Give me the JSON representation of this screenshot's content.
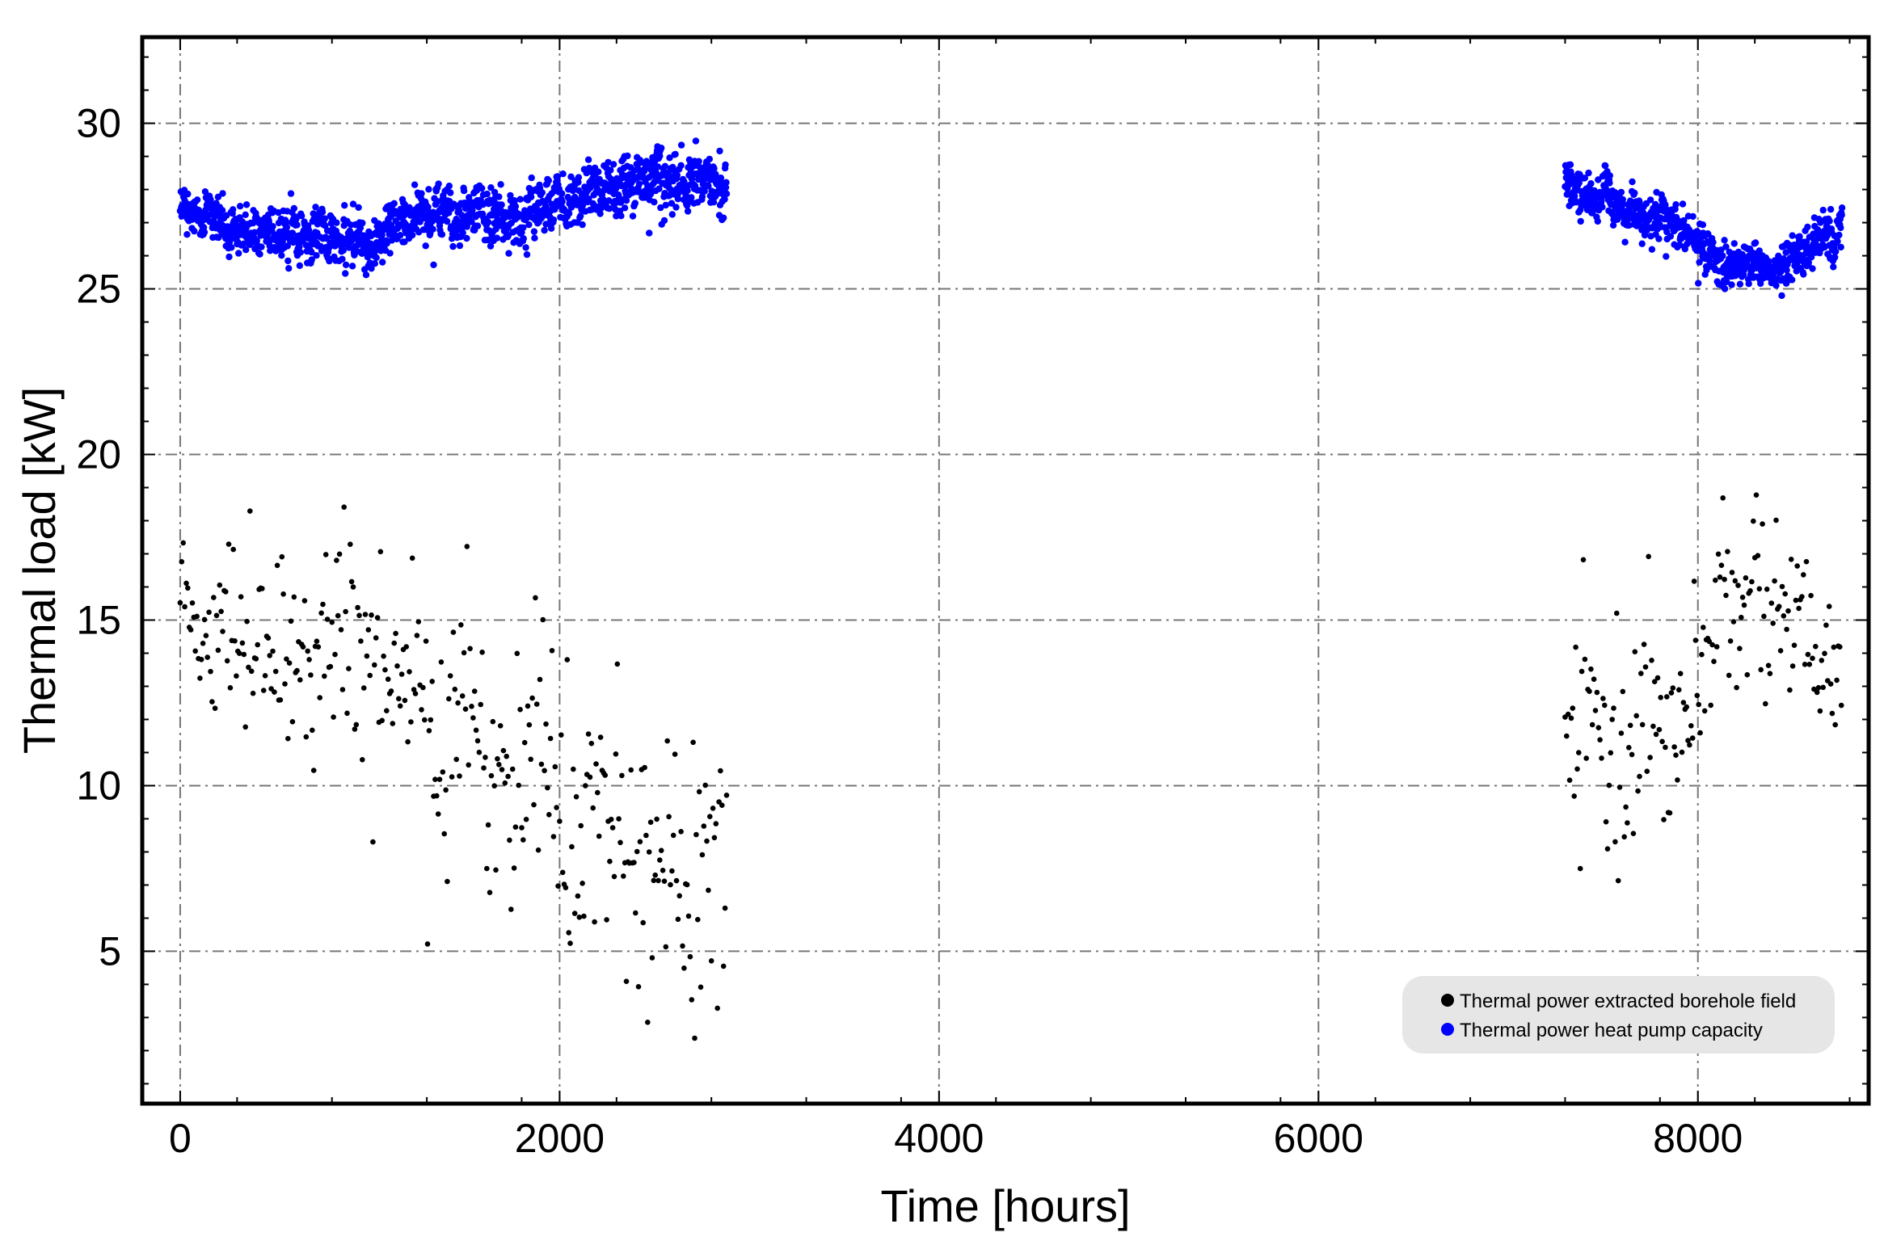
{
  "chart_data": {
    "type": "scatter",
    "title": "",
    "xlabel": "Time [hours]",
    "ylabel": "Thermal load [kW]",
    "xlim": [
      -200,
      8900
    ],
    "ylim": [
      0.4,
      32.6
    ],
    "x_ticks": [
      0,
      2000,
      4000,
      6000,
      8000
    ],
    "y_ticks": [
      5,
      10,
      15,
      20,
      25,
      30
    ],
    "x_tick_labels": [
      "0",
      "2000",
      "4000",
      "6000",
      "8000"
    ],
    "y_tick_labels": [
      "5",
      "10",
      "15",
      "20",
      "25",
      "30"
    ],
    "grid": true,
    "legend_position": "bottom-right",
    "series": [
      {
        "name": "Thermal power extracted borehole field",
        "color": "#000000",
        "segments": [
          {
            "x_start": 0,
            "x_end": 2880,
            "step": 8,
            "profile": [
              [
                0,
                15.5,
                2.3
              ],
              [
                300,
                15.0,
                2.6
              ],
              [
                600,
                14.5,
                3.0
              ],
              [
                900,
                14.5,
                3.0
              ],
              [
                1200,
                11.5,
                3.5
              ],
              [
                1500,
                11.0,
                3.8
              ],
              [
                1800,
                10.5,
                4.0
              ],
              [
                2100,
                9.5,
                4.2
              ],
              [
                2400,
                8.5,
                4.3
              ],
              [
                2700,
                7.5,
                4.5
              ],
              [
                2880,
                8.0,
                4.0
              ]
            ],
            "range": [
              0.6,
              19.8
            ]
          },
          {
            "x_start": 7300,
            "x_end": 8760,
            "step": 8,
            "profile": [
              [
                7300,
                11.0,
                2.8
              ],
              [
                7600,
                11.5,
                3.0
              ],
              [
                7900,
                12.5,
                2.5
              ],
              [
                8100,
                15.0,
                2.2
              ],
              [
                8400,
                15.5,
                2.5
              ],
              [
                8600,
                13.5,
                2.3
              ],
              [
                8760,
                12.5,
                2.0
              ]
            ],
            "range": [
              4.5,
              20.8
            ]
          }
        ]
      },
      {
        "name": "Thermal power heat pump capacity",
        "color": "#0000ff",
        "segments": [
          {
            "x_start": 0,
            "x_end": 2880,
            "step": 2,
            "profile": [
              [
                0,
                27.3,
                0.55
              ],
              [
                400,
                26.8,
                0.65
              ],
              [
                900,
                26.3,
                0.7
              ],
              [
                1300,
                27.3,
                0.7
              ],
              [
                1700,
                27.2,
                0.8
              ],
              [
                2100,
                27.8,
                0.7
              ],
              [
                2500,
                28.3,
                0.8
              ],
              [
                2880,
                28.0,
                0.8
              ]
            ],
            "range": [
              24.8,
              30.6
            ]
          },
          {
            "x_start": 7300,
            "x_end": 8760,
            "step": 2,
            "profile": [
              [
                7300,
                28.5,
                0.6
              ],
              [
                7600,
                27.5,
                0.6
              ],
              [
                7900,
                27.0,
                0.6
              ],
              [
                8100,
                25.8,
                0.5
              ],
              [
                8400,
                25.6,
                0.5
              ],
              [
                8760,
                26.8,
                0.6
              ]
            ],
            "range": [
              24.2,
              30.0
            ]
          }
        ]
      }
    ]
  }
}
